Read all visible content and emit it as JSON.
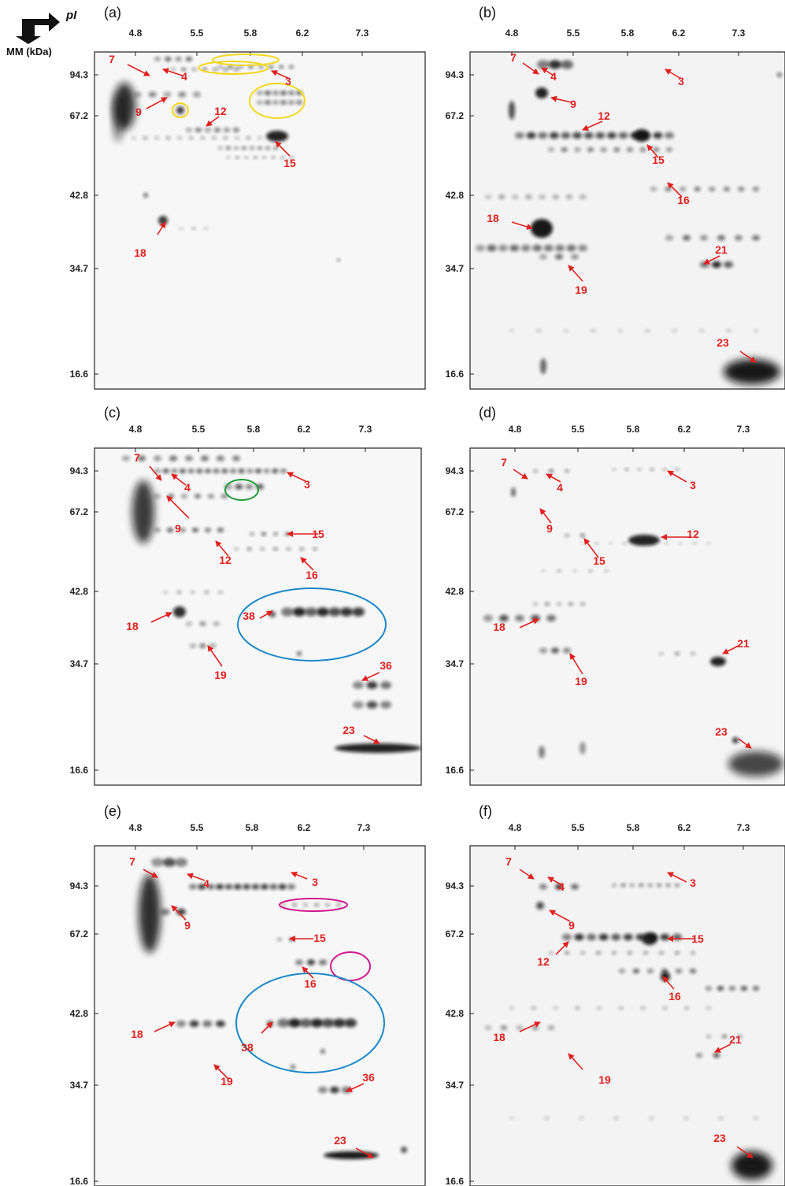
{
  "header": {
    "pi_label": "pI",
    "mm_label": "MM (kDa)"
  },
  "pi_ticks": [
    "4.8",
    "5.5",
    "5.8",
    "6.2",
    "7.3"
  ],
  "mm_ticks": [
    "94.3",
    "67.2",
    "42.8",
    "34.7",
    "16.6"
  ],
  "colors": {
    "arrow": "#e0201e",
    "yellow_circle": "#f2d81a",
    "green_circle": "#1f9a3a",
    "blue_circle": "#1a88c9",
    "magenta_circle": "#d0198f"
  },
  "panels": [
    {
      "tag": "(a)",
      "spots": [
        "7",
        "4",
        "3",
        "9",
        "12",
        "15",
        "18"
      ]
    },
    {
      "tag": "(b)",
      "spots": [
        "7",
        "4",
        "3",
        "9",
        "12",
        "15",
        "16",
        "18",
        "21",
        "19",
        "23"
      ]
    },
    {
      "tag": "(c)",
      "spots": [
        "7",
        "4",
        "3",
        "9",
        "15",
        "12",
        "16",
        "18",
        "38",
        "19",
        "36",
        "23"
      ]
    },
    {
      "tag": "(d)",
      "spots": [
        "7",
        "4",
        "3",
        "9",
        "12",
        "15",
        "18",
        "21",
        "19",
        "23"
      ]
    },
    {
      "tag": "(e)",
      "spots": [
        "7",
        "4",
        "3",
        "9",
        "15",
        "16",
        "18",
        "38",
        "19",
        "36",
        "23"
      ]
    },
    {
      "tag": "(f)",
      "spots": [
        "7",
        "4",
        "3",
        "9",
        "15",
        "12",
        "16",
        "18",
        "21",
        "19",
        "23"
      ]
    }
  ]
}
